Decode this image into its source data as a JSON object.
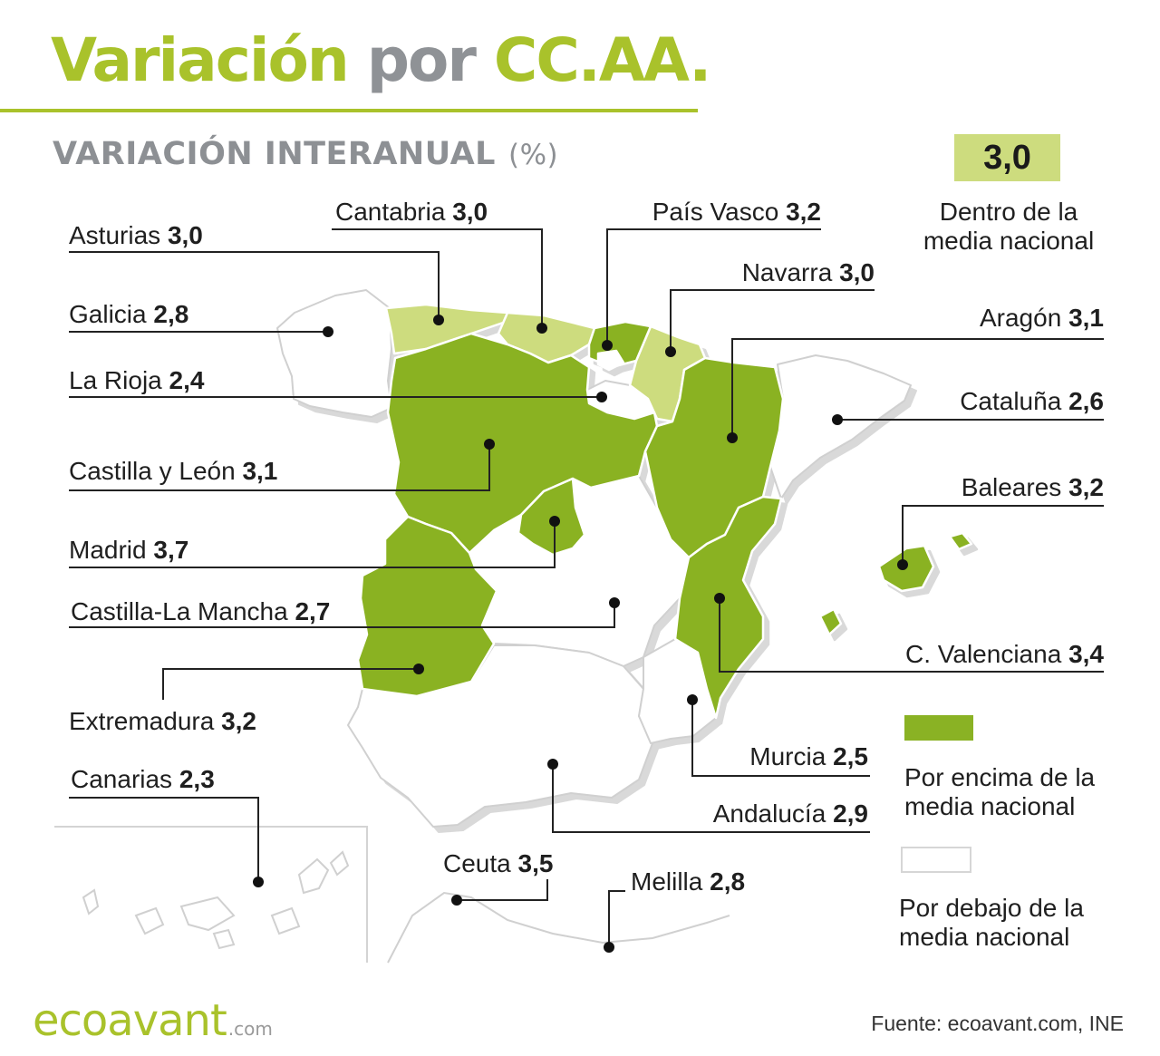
{
  "title": {
    "part1": "Variación",
    "part2": "por",
    "part3": "CC.AA."
  },
  "subtitle": {
    "main": "VARIACIÓN INTERANUAL",
    "unit": "(%)"
  },
  "legend": {
    "national_value": "3,0",
    "within_label": "Dentro de la media nacional",
    "above_label": "Por encima de la media nacional",
    "below_label": "Por debajo de la media nacional",
    "colors": {
      "within": "#cddc7e",
      "above": "#8ab224",
      "below": "#ffffff"
    }
  },
  "regions": [
    {
      "id": "asturias",
      "name": "Asturias",
      "value": "3,0",
      "category": "within"
    },
    {
      "id": "cantabria",
      "name": "Cantabria",
      "value": "3,0",
      "category": "within"
    },
    {
      "id": "pais-vasco",
      "name": "País Vasco",
      "value": "3,2",
      "category": "above"
    },
    {
      "id": "navarra",
      "name": "Navarra",
      "value": "3,0",
      "category": "within"
    },
    {
      "id": "galicia",
      "name": "Galicia",
      "value": "2,8",
      "category": "below"
    },
    {
      "id": "aragon",
      "name": "Aragón",
      "value": "3,1",
      "category": "above"
    },
    {
      "id": "la-rioja",
      "name": "La Rioja",
      "value": "2,4",
      "category": "below"
    },
    {
      "id": "cataluna",
      "name": "Cataluña",
      "value": "2,6",
      "category": "below"
    },
    {
      "id": "castilla-leon",
      "name": "Castilla y León",
      "value": "3,1",
      "category": "above"
    },
    {
      "id": "baleares",
      "name": "Baleares",
      "value": "3,2",
      "category": "above"
    },
    {
      "id": "madrid",
      "name": "Madrid",
      "value": "3,7",
      "category": "above"
    },
    {
      "id": "castilla-la-mancha",
      "name": "Castilla-La Mancha",
      "value": "2,7",
      "category": "below"
    },
    {
      "id": "c-valenciana",
      "name": "C. Valenciana",
      "value": "3,4",
      "category": "above"
    },
    {
      "id": "extremadura",
      "name": "Extremadura",
      "value": "3,2",
      "category": "above"
    },
    {
      "id": "murcia",
      "name": "Murcia",
      "value": "2,5",
      "category": "below"
    },
    {
      "id": "canarias",
      "name": "Canarias",
      "value": "2,3",
      "category": "below"
    },
    {
      "id": "andalucia",
      "name": "Andalucía",
      "value": "2,9",
      "category": "below"
    },
    {
      "id": "ceuta",
      "name": "Ceuta",
      "value": "3,5",
      "category": "above"
    },
    {
      "id": "melilla",
      "name": "Melilla",
      "value": "2,8",
      "category": "below"
    }
  ],
  "logo": {
    "brand": "ecoavant",
    "suffix": ".com"
  },
  "source": "Fuente: ecoavant.com, INE"
}
